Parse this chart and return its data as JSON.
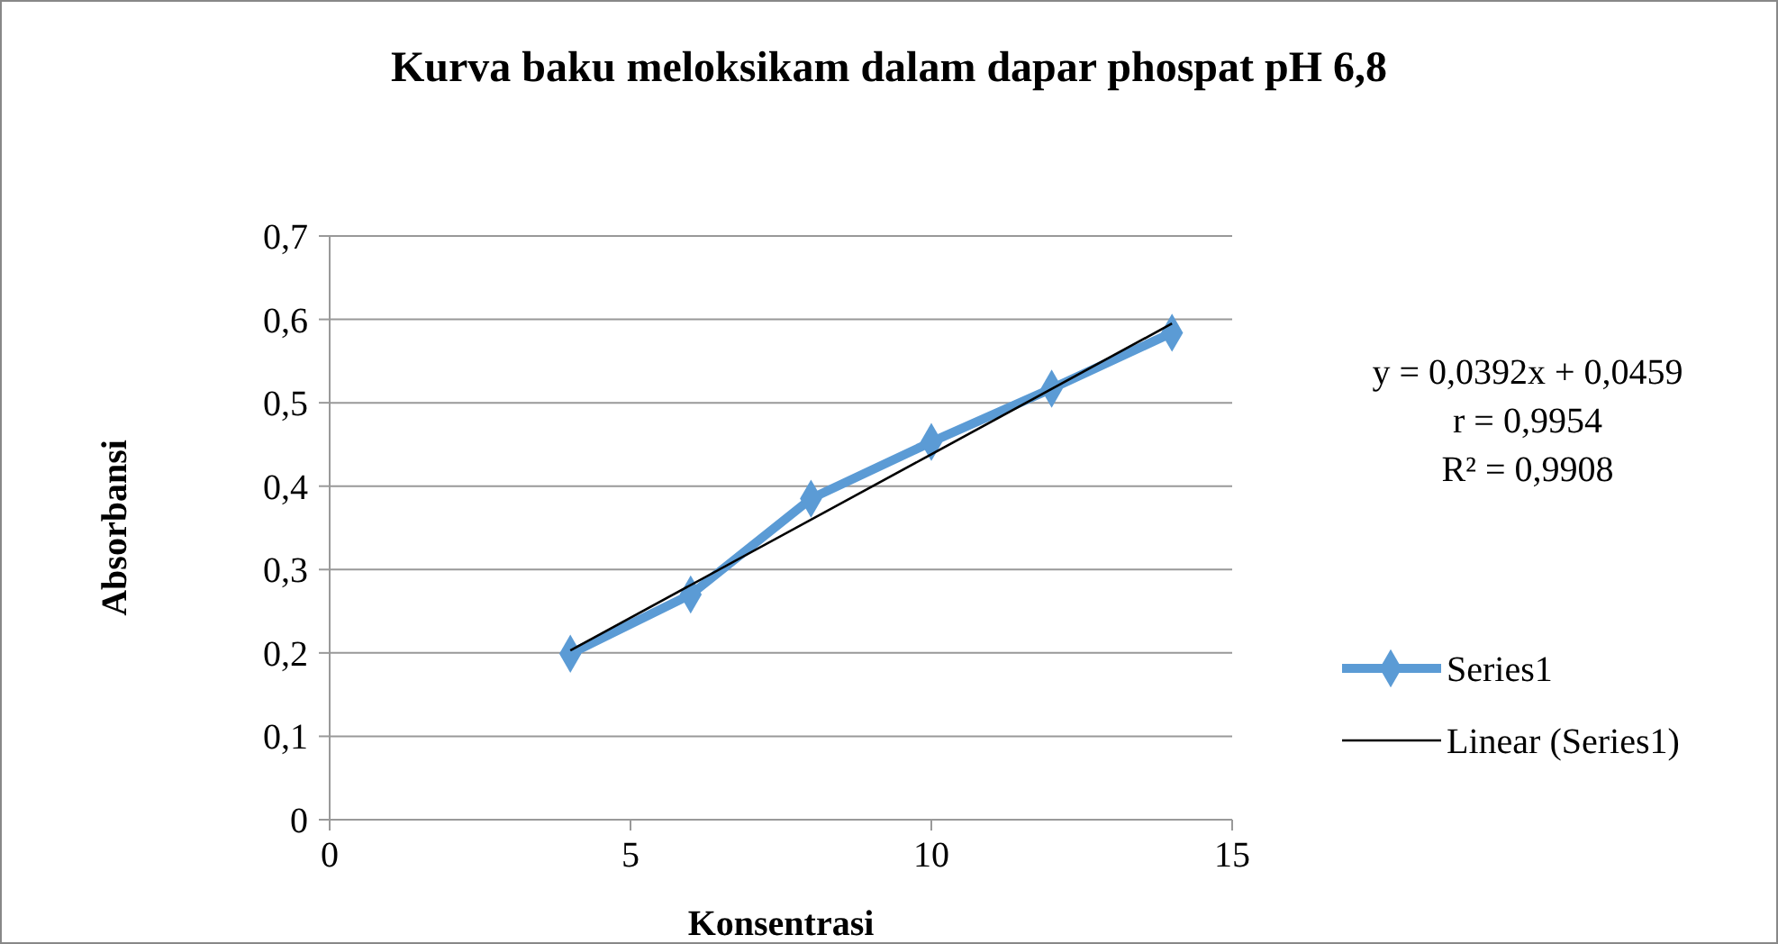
{
  "chart_data": {
    "type": "line",
    "title": "Kurva baku meloksikam dalam dapar phospat pH 6,8",
    "xlabel": "Konsentrasi",
    "ylabel": "Absorbansi",
    "x": [
      4,
      6,
      8,
      10,
      12,
      14
    ],
    "series": [
      {
        "name": "Series1",
        "color": "#5b9bd5",
        "values": [
          0.199,
          0.27,
          0.385,
          0.453,
          0.517,
          0.584
        ],
        "marker": "diamond"
      },
      {
        "name": "Linear (Series1)",
        "type": "line",
        "color": "#000000",
        "x": [
          4,
          14
        ],
        "values": [
          0.203,
          0.595
        ],
        "marker": "none"
      }
    ],
    "xlim": [
      0,
      15
    ],
    "xticks": [
      0,
      5,
      10,
      15
    ],
    "ylim": [
      0,
      0.7
    ],
    "yticks": [
      {
        "value": 0,
        "label": "0"
      },
      {
        "value": 0.1,
        "label": "0,1"
      },
      {
        "value": 0.2,
        "label": "0,2"
      },
      {
        "value": 0.3,
        "label": "0,3"
      },
      {
        "value": 0.4,
        "label": "0,4"
      },
      {
        "value": 0.5,
        "label": "0,5"
      },
      {
        "value": 0.6,
        "label": "0,6"
      },
      {
        "value": 0.7,
        "label": "0,7"
      }
    ],
    "grid": "y",
    "legend": "right",
    "annotations": [
      "y = 0,0392x + 0,0459",
      "r = 0,9954",
      "R² = 0,9908"
    ]
  }
}
